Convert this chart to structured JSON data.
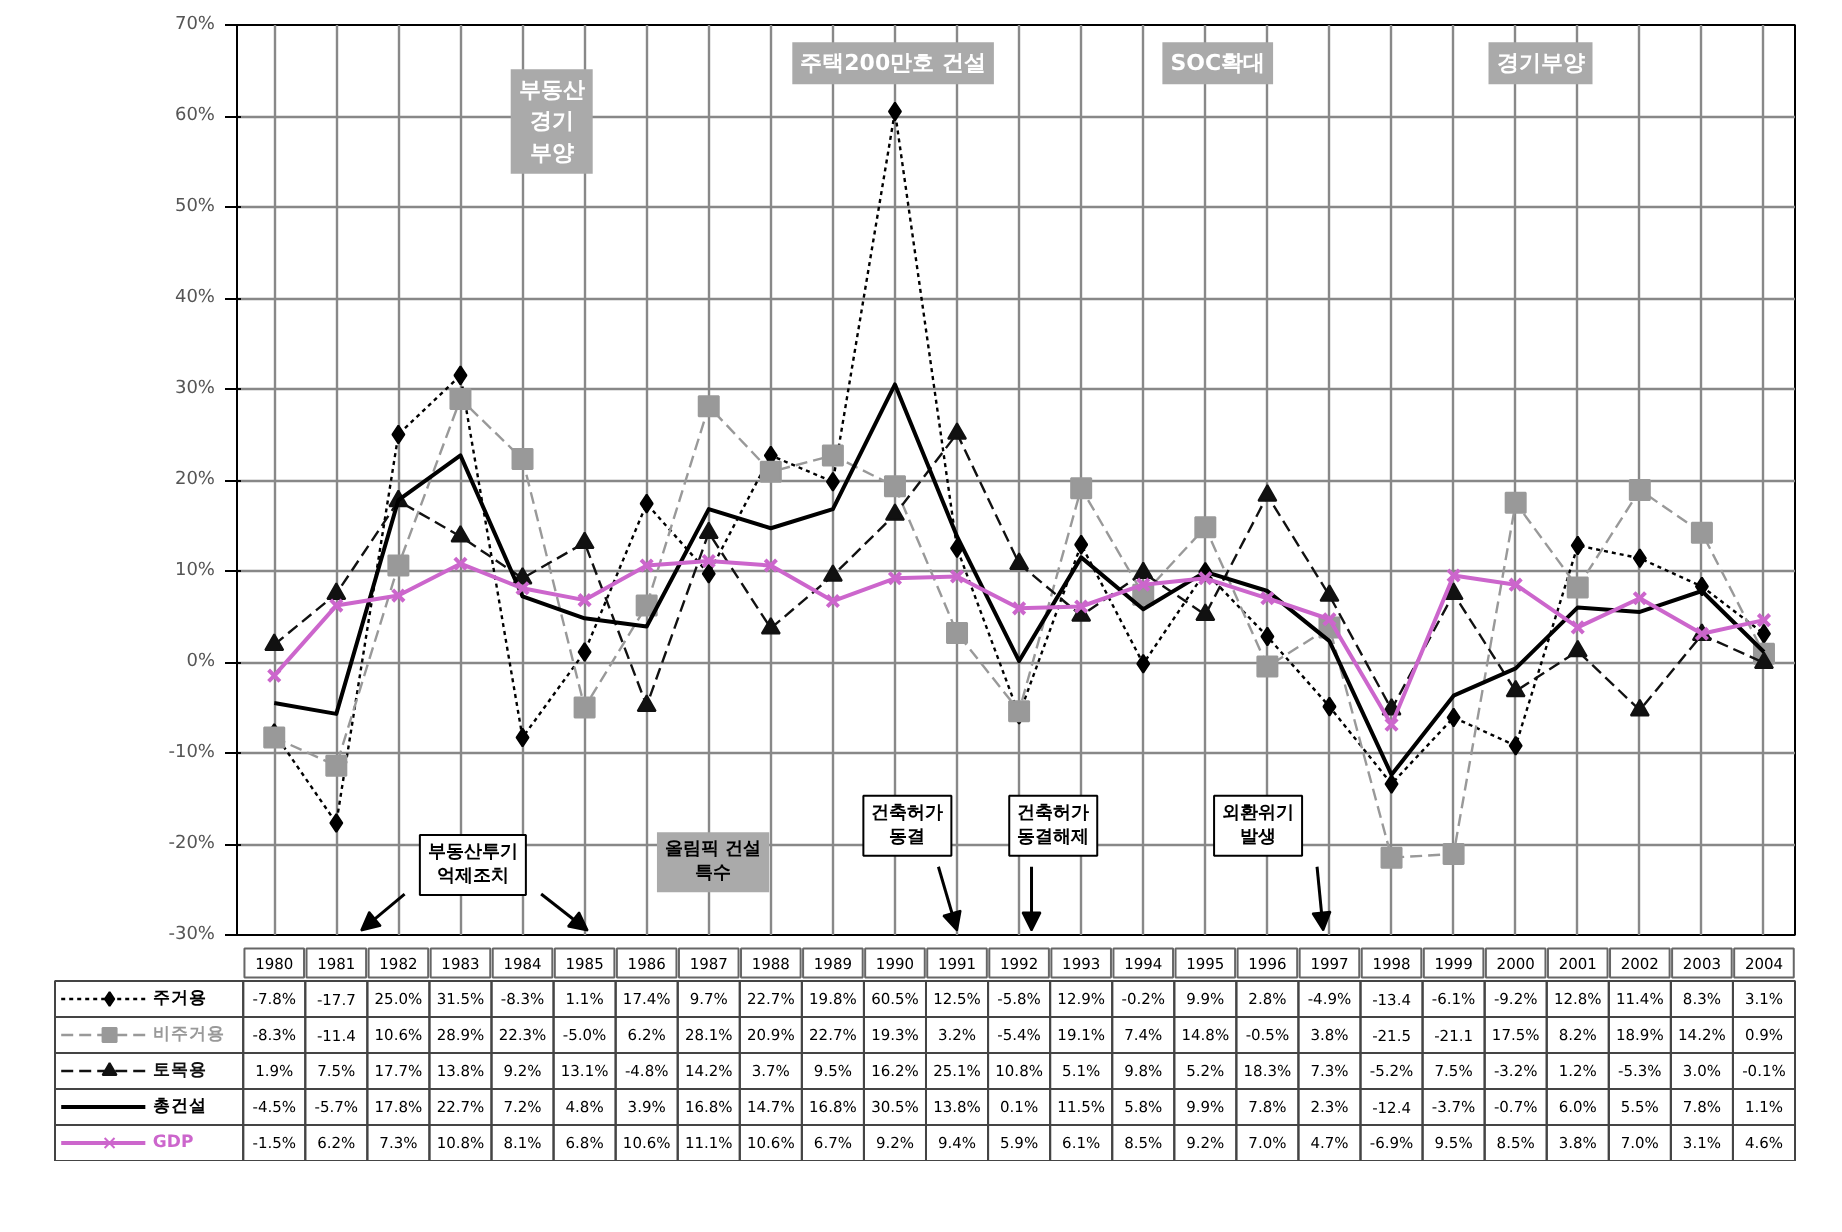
{
  "chart_data": {
    "type": "line",
    "categories": [
      "1980",
      "1981",
      "1982",
      "1983",
      "1984",
      "1985",
      "1986",
      "1987",
      "1988",
      "1989",
      "1990",
      "1991",
      "1992",
      "1993",
      "1994",
      "1995",
      "1996",
      "1997",
      "1998",
      "1999",
      "2000",
      "2001",
      "2002",
      "2003",
      "2004"
    ],
    "series": [
      {
        "name": "주거용",
        "color": "#000000",
        "marker": "diamond",
        "line_style": "dotted",
        "values": [
          -7.8,
          -17.7,
          25.0,
          31.5,
          -8.3,
          1.1,
          17.4,
          9.7,
          22.7,
          19.8,
          60.5,
          12.5,
          -5.8,
          12.9,
          -0.2,
          9.9,
          2.8,
          -4.9,
          -13.4,
          -6.1,
          -9.2,
          12.8,
          11.4,
          8.3,
          3.1
        ],
        "value_labels": [
          "-7.8%",
          "-17.7",
          "25.0%",
          "31.5%",
          "-8.3%",
          "1.1%",
          "17.4%",
          "9.7%",
          "22.7%",
          "19.8%",
          "60.5%",
          "12.5%",
          "-5.8%",
          "12.9%",
          "-0.2%",
          "9.9%",
          "2.8%",
          "-4.9%",
          "-13.4",
          "-6.1%",
          "-9.2%",
          "12.8%",
          "11.4%",
          "8.3%",
          "3.1%"
        ]
      },
      {
        "name": "비주거용",
        "color": "#999999",
        "marker": "square",
        "line_style": "dashed",
        "values": [
          -8.3,
          -11.4,
          10.6,
          28.9,
          22.3,
          -5.0,
          6.2,
          28.1,
          20.9,
          22.7,
          19.3,
          3.2,
          -5.4,
          19.1,
          7.4,
          14.8,
          -0.5,
          3.8,
          -21.5,
          -21.1,
          17.5,
          8.2,
          18.9,
          14.2,
          0.9
        ],
        "value_labels": [
          "-8.3%",
          "-11.4",
          "10.6%",
          "28.9%",
          "22.3%",
          "-5.0%",
          "6.2%",
          "28.1%",
          "20.9%",
          "22.7%",
          "19.3%",
          "3.2%",
          "-5.4%",
          "19.1%",
          "7.4%",
          "14.8%",
          "-0.5%",
          "3.8%",
          "-21.5",
          "-21.1",
          "17.5%",
          "8.2%",
          "18.9%",
          "14.2%",
          "0.9%"
        ]
      },
      {
        "name": "토목용",
        "color": "#111111",
        "marker": "triangle",
        "line_style": "dashed",
        "values": [
          1.9,
          7.5,
          17.7,
          13.8,
          9.2,
          13.1,
          -4.8,
          14.2,
          3.7,
          9.5,
          16.2,
          25.1,
          10.8,
          5.1,
          9.8,
          5.2,
          18.3,
          7.3,
          -5.2,
          7.5,
          -3.2,
          1.2,
          -5.3,
          3.0,
          -0.1
        ],
        "value_labels": [
          "1.9%",
          "7.5%",
          "17.7%",
          "13.8%",
          "9.2%",
          "13.1%",
          "-4.8%",
          "14.2%",
          "3.7%",
          "9.5%",
          "16.2%",
          "25.1%",
          "10.8%",
          "5.1%",
          "9.8%",
          "5.2%",
          "18.3%",
          "7.3%",
          "-5.2%",
          "7.5%",
          "-3.2%",
          "1.2%",
          "-5.3%",
          "3.0%",
          "-0.1%"
        ]
      },
      {
        "name": "총건설",
        "color": "#000000",
        "marker": "none",
        "line_style": "solid",
        "values": [
          -4.5,
          -5.7,
          17.8,
          22.7,
          7.2,
          4.8,
          3.9,
          16.8,
          14.7,
          16.8,
          30.5,
          13.8,
          0.1,
          11.5,
          5.8,
          9.9,
          7.8,
          2.3,
          -12.4,
          -3.7,
          -0.7,
          6.0,
          5.5,
          7.8,
          1.1
        ],
        "value_labels": [
          "-4.5%",
          "-5.7%",
          "17.8%",
          "22.7%",
          "7.2%",
          "4.8%",
          "3.9%",
          "16.8%",
          "14.7%",
          "16.8%",
          "30.5%",
          "13.8%",
          "0.1%",
          "11.5%",
          "5.8%",
          "9.9%",
          "7.8%",
          "2.3%",
          "-12.4",
          "-3.7%",
          "-0.7%",
          "6.0%",
          "5.5%",
          "7.8%",
          "1.1%"
        ]
      },
      {
        "name": "GDP",
        "color": "#cc66cc",
        "marker": "cross",
        "line_style": "solid",
        "values": [
          -1.5,
          6.2,
          7.3,
          10.8,
          8.1,
          6.8,
          10.6,
          11.1,
          10.6,
          6.7,
          9.2,
          9.4,
          5.9,
          6.1,
          8.5,
          9.2,
          7.0,
          4.7,
          -6.9,
          9.5,
          8.5,
          3.8,
          7.0,
          3.1,
          4.6
        ],
        "value_labels": [
          "-1.5%",
          "6.2%",
          "7.3%",
          "10.8%",
          "8.1%",
          "6.8%",
          "10.6%",
          "11.1%",
          "10.6%",
          "6.7%",
          "9.2%",
          "9.4%",
          "5.9%",
          "6.1%",
          "8.5%",
          "9.2%",
          "7.0%",
          "4.7%",
          "-6.9%",
          "9.5%",
          "8.5%",
          "3.8%",
          "7.0%",
          "3.1%",
          "4.6%"
        ]
      }
    ],
    "ylim": [
      -30,
      70
    ],
    "yticks": [
      {
        "value": -30,
        "label": "-30%"
      },
      {
        "value": -20,
        "label": "-20%"
      },
      {
        "value": -10,
        "label": "-10%"
      },
      {
        "value": 0,
        "label": "0%"
      },
      {
        "value": 10,
        "label": "10%"
      },
      {
        "value": 20,
        "label": "20%"
      },
      {
        "value": 30,
        "label": "30%"
      },
      {
        "value": 40,
        "label": "40%"
      },
      {
        "value": 50,
        "label": "50%"
      },
      {
        "value": 60,
        "label": "60%"
      },
      {
        "value": 70,
        "label": "70%"
      }
    ],
    "grid": true,
    "legend": "bottom",
    "annotations": [
      "부동산\n경기\n부양",
      "주택200만호 건설",
      "SOC확대",
      "경기부양",
      "부동산투기\n억제조치",
      "올림픽 건설\n특수",
      "건축허가\n동결",
      "건축허가\n동결해제",
      "외환위기\n발생"
    ]
  }
}
